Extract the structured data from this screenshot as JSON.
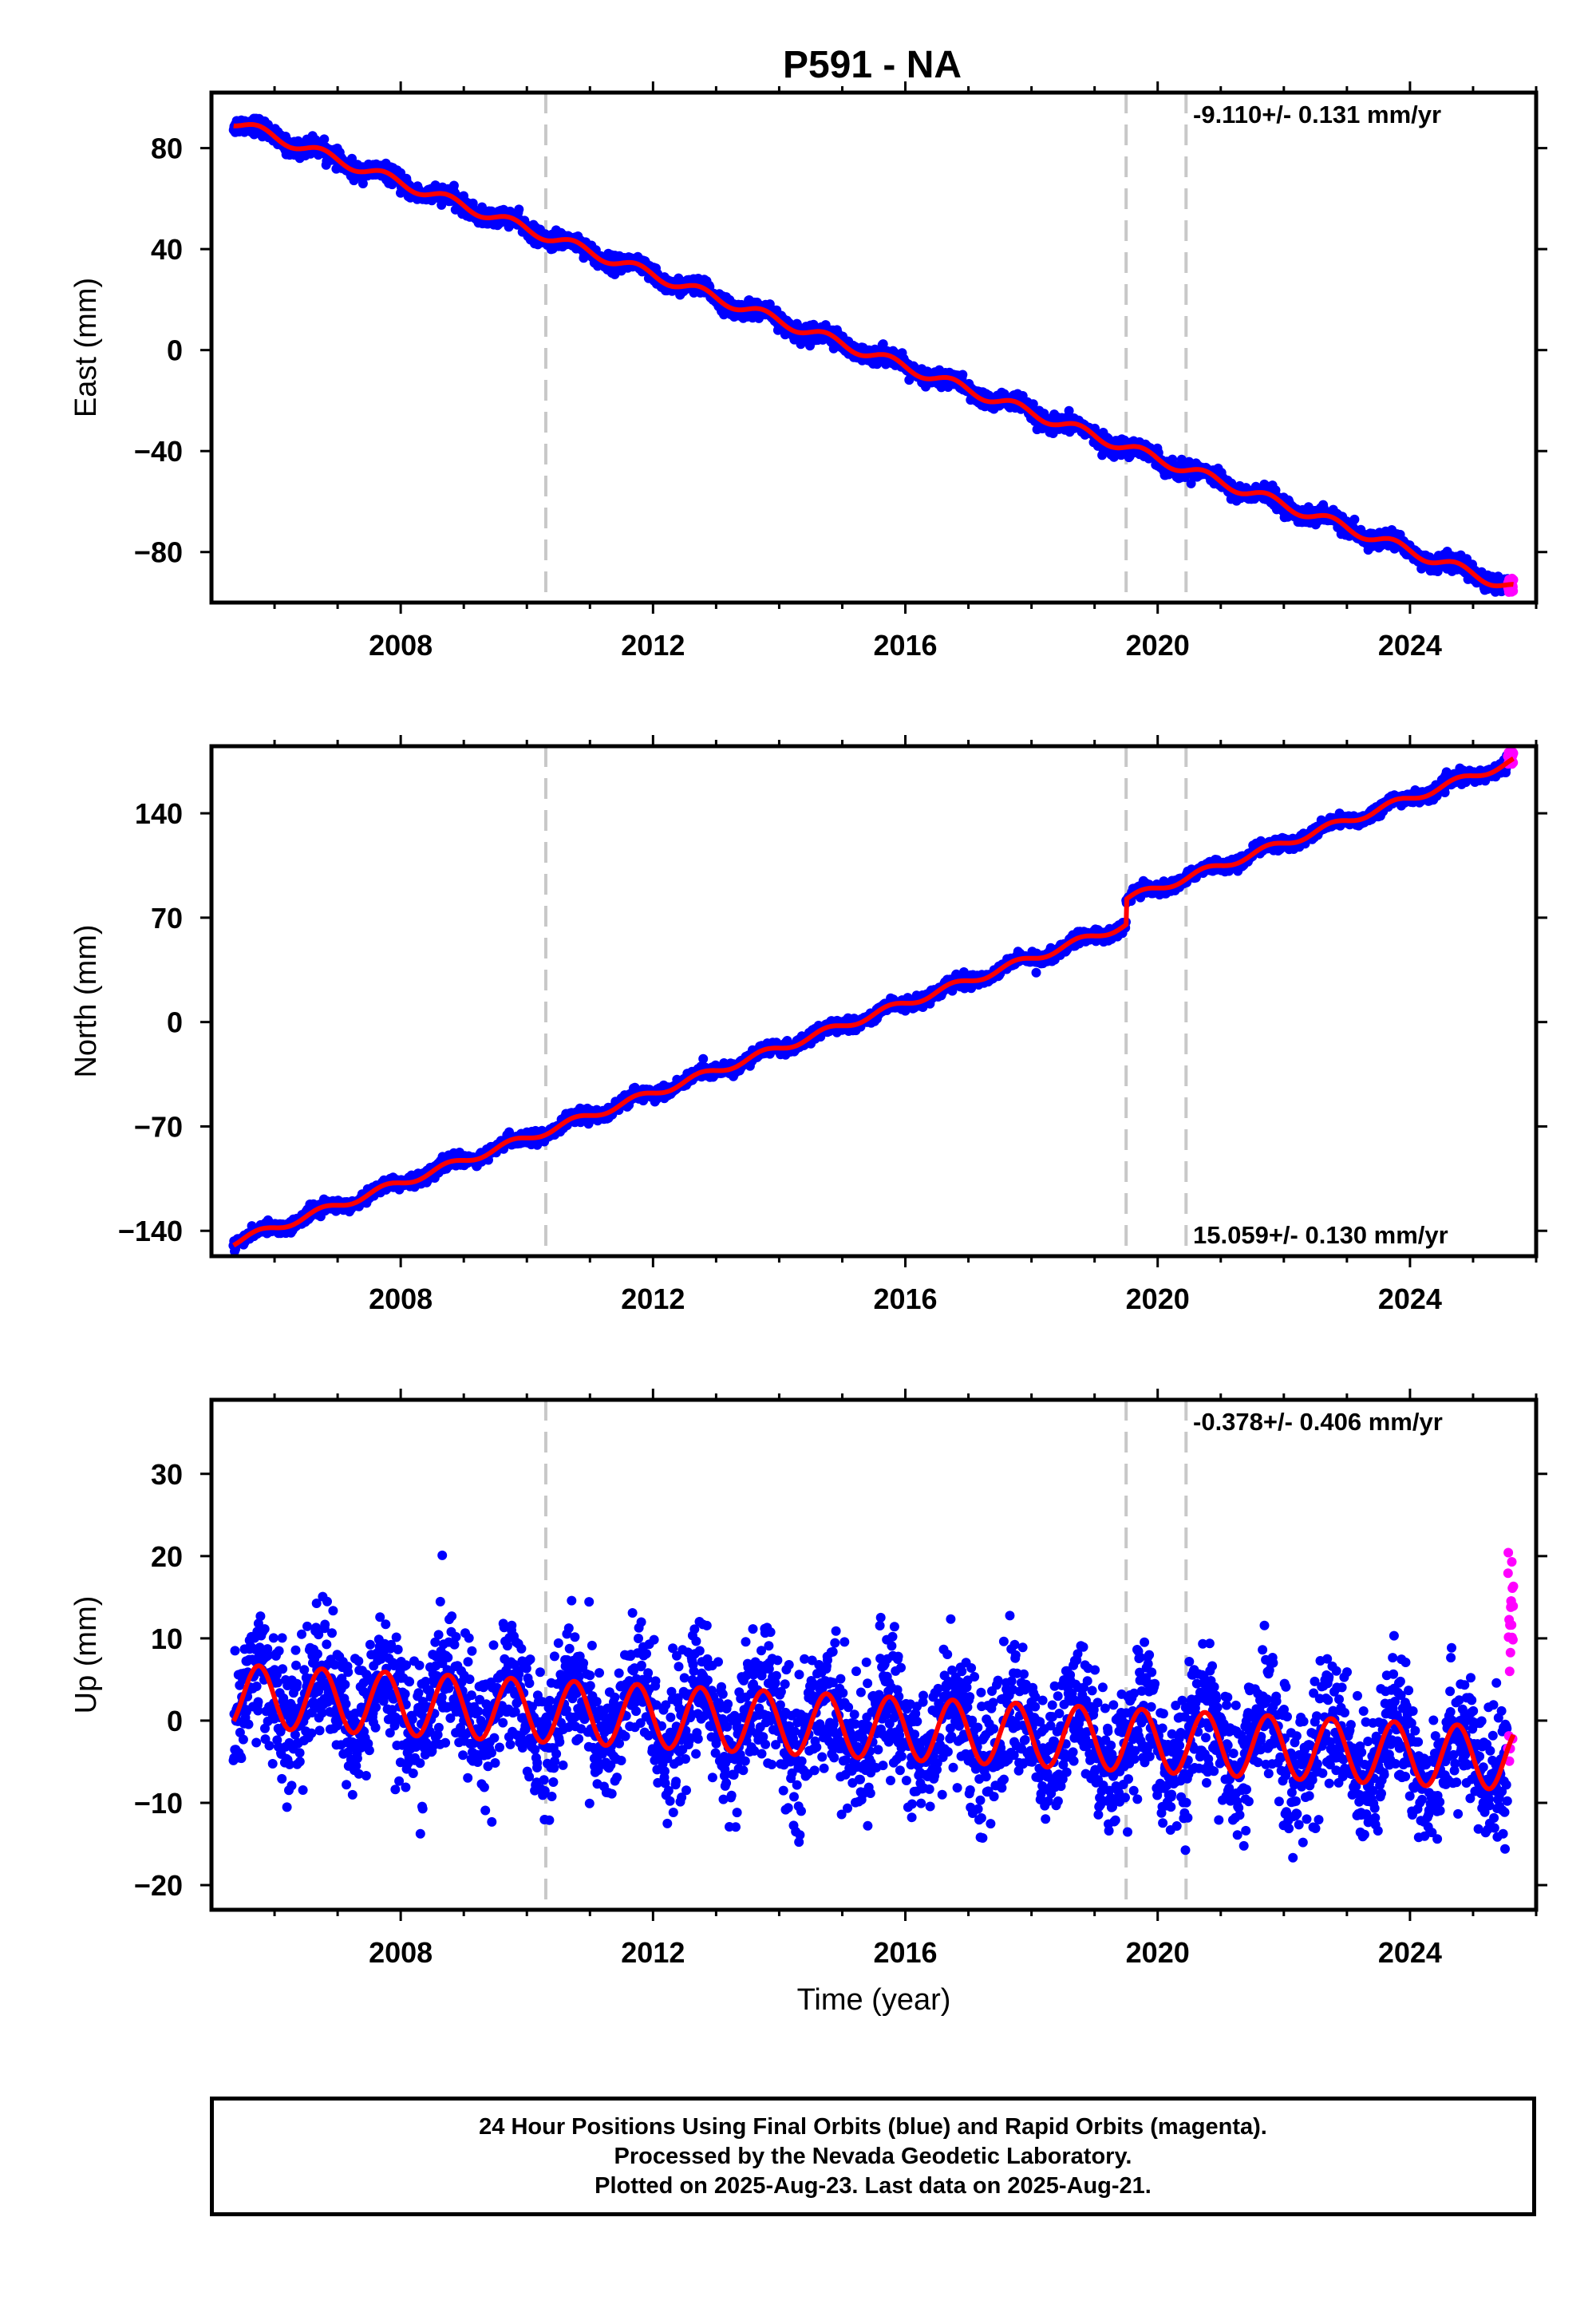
{
  "title": "P591 - NA",
  "colors": {
    "final_orbits": "#0000ff",
    "rapid_orbits": "#ff00ff",
    "model_fit": "#ff0000",
    "event_lines": "#c8c8c8",
    "frame": "#000000"
  },
  "chart_data": [
    {
      "type": "scatter",
      "component": "east",
      "ylabel": "East (mm)",
      "xlabel": "",
      "xlim": [
        2005.0,
        2026.0
      ],
      "ylim": [
        -100,
        102
      ],
      "x_ticks": [
        2008,
        2012,
        2016,
        2020,
        2024
      ],
      "y_ticks": [
        80,
        40,
        0,
        -40,
        -80
      ],
      "rate_label": "-9.110+/- 0.131 mm/yr",
      "rate_label_position": "top-right",
      "event_lines": [
        2010.3,
        2019.5,
        2020.45
      ],
      "data_span": [
        2005.35,
        2025.64
      ],
      "series": [
        {
          "name": "24 Hour Positions Using Final Orbits (blue)",
          "trend": {
            "ref_year": 2005.4,
            "start_value": 90,
            "rate_mm_per_yr": -9.11
          },
          "seasonal_amplitude": 2.0,
          "scatter_sd": 1.6
        },
        {
          "name": "Rapid Orbits (magenta)",
          "x_range": [
            2025.55,
            2025.64
          ],
          "values_range": [
            -96,
            -90
          ]
        },
        {
          "name": "Model fit (red)",
          "type": "line"
        }
      ]
    },
    {
      "type": "scatter",
      "component": "north",
      "ylabel": "North (mm)",
      "xlabel": "",
      "xlim": [
        2005.0,
        2026.0
      ],
      "ylim": [
        -157,
        185
      ],
      "x_ticks": [
        2008,
        2012,
        2016,
        2020,
        2024
      ],
      "y_ticks": [
        140,
        70,
        0,
        -70,
        -140
      ],
      "rate_label": "15.059+/- 0.130 mm/yr",
      "rate_label_position": "bottom-right",
      "event_lines": [
        2010.3,
        2019.5,
        2020.45
      ],
      "data_span": [
        2005.35,
        2025.64
      ],
      "offset_step": {
        "year": 2019.5,
        "size_mm": 17
      },
      "series": [
        {
          "name": "24 Hour Positions Using Final Orbits (blue)",
          "trend": {
            "ref_year": 2005.4,
            "start_value": -147,
            "rate_mm_per_yr": 15.059
          },
          "seasonal_amplitude": 2.5,
          "scatter_sd": 2.0
        },
        {
          "name": "Rapid Orbits (magenta)",
          "x_range": [
            2025.55,
            2025.64
          ],
          "values_range": [
            173,
            181
          ]
        },
        {
          "name": "Model fit (red)",
          "type": "line"
        }
      ]
    },
    {
      "type": "scatter",
      "component": "up",
      "ylabel": "Up (mm)",
      "xlabel": "Time (year)",
      "xlim": [
        2005.0,
        2026.0
      ],
      "ylim": [
        -23,
        39
      ],
      "x_ticks": [
        2008,
        2012,
        2016,
        2020,
        2024
      ],
      "y_ticks": [
        30,
        20,
        10,
        0,
        -10,
        -20
      ],
      "rate_label": "-0.378+/- 0.406 mm/yr",
      "rate_label_position": "top-right",
      "event_lines": [
        2010.3,
        2019.5,
        2020.45
      ],
      "data_span": [
        2005.35,
        2025.64
      ],
      "series": [
        {
          "name": "24 Hour Positions Using Final Orbits (blue)",
          "trend": {
            "ref_year": 2005.4,
            "start_value": 3,
            "rate_mm_per_yr": -0.378
          },
          "seasonal_amplitude": 3.8,
          "scatter_sd": 4.0
        },
        {
          "name": "Rapid Orbits (magenta)",
          "x_range": [
            2025.55,
            2025.64
          ],
          "values_range": [
            -5,
            21
          ]
        },
        {
          "name": "Model fit (red)",
          "type": "line"
        }
      ]
    }
  ],
  "footer": {
    "line1": "24 Hour Positions Using Final Orbits (blue) and Rapid Orbits (magenta).",
    "line2": "Processed by the Nevada Geodetic Laboratory.",
    "line3": "Plotted on 2025-Aug-23. Last data on 2025-Aug-21."
  }
}
